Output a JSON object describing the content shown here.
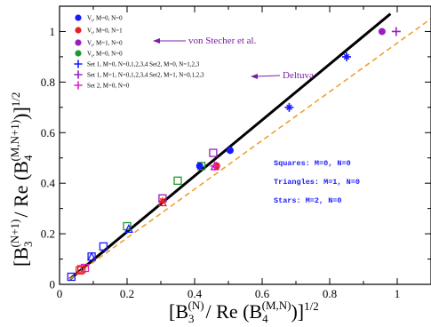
{
  "chart_data": {
    "type": "scatter",
    "xlim": [
      0,
      1.1
    ],
    "ylim": [
      0,
      1.1
    ],
    "x_ticks": [
      "0",
      "0.2",
      "0.4",
      "0.6",
      "0.8",
      "1"
    ],
    "y_ticks": [
      "0",
      "0.2",
      "0.4",
      "0.6",
      "0.8",
      "1"
    ],
    "xlabel": {
      "base": "[B",
      "sub1": "3",
      "sup1": "(N)",
      "mid": "/ Re (B",
      "sub2": "4",
      "sup2": "(M,N)",
      "end": ")]",
      "exp": "1/2"
    },
    "ylabel": {
      "base": "[B",
      "sub1": "3",
      "sup1": "(N+1)",
      "mid": "/ Re (B",
      "sub2": "4",
      "sup2": "(M,N+1)",
      "end": ")]",
      "exp": "1/2"
    },
    "lines": [
      {
        "style": "solid",
        "color": "#000000",
        "points": [
          [
            0.03,
            0.02
          ],
          [
            0.98,
            1.07
          ]
        ]
      },
      {
        "style": "dashed",
        "color": "#f0a030",
        "points": [
          [
            0.03,
            0.02
          ],
          [
            1.12,
            1.07
          ]
        ]
      }
    ],
    "series": [
      {
        "legend_main": "V",
        "legend_sub": "t",
        "legend_tail": ", M=0, N=0",
        "marker": "circle",
        "color": "#1a1aff",
        "points": [
          [
            0.415,
            0.468
          ],
          [
            0.505,
            0.53
          ]
        ]
      },
      {
        "legend_main": "V",
        "legend_sub": "t",
        "legend_tail": ", M=0, N=1",
        "marker": "circle",
        "color": "#e8202a",
        "points": [
          [
            0.465,
            0.468
          ]
        ]
      },
      {
        "legend_main": "V",
        "legend_sub": "t",
        "legend_tail": ", M=1, N=0",
        "marker": "circle",
        "color": "#9a1ec0",
        "points": [
          [
            0.955,
            1.0
          ]
        ]
      },
      {
        "legend_main": "V",
        "legend_sub": "t",
        "legend_tail": ", M=0, N=0",
        "marker": "circle",
        "color": "#1e9a2a",
        "points": []
      },
      {
        "legend_main": "Set 1, M=0, N=0,1,2,3,4   Set2, M=0, N=1,2,3",
        "marker": "plus",
        "color": "#1a1aff",
        "points": [
          [
            0.68,
            0.7
          ],
          [
            0.85,
            0.9
          ]
        ]
      },
      {
        "legend_main": "Set 1, M=1, N=0,1,2,3,4   Set2, M=1, N=0,1,2,3",
        "marker": "plus",
        "color": "#9a1ec0",
        "points": [
          [
            0.997,
            1.0
          ]
        ]
      },
      {
        "legend_main": "Set 2, M=0, N=0",
        "marker": "plus",
        "color": "#e020c0",
        "points": [
          [
            0.46,
            0.468
          ]
        ]
      }
    ],
    "open_markers": [
      {
        "shape": "square",
        "color": "#1a1aff",
        "points": [
          [
            0.035,
            0.03
          ],
          [
            0.095,
            0.11
          ],
          [
            0.13,
            0.15
          ]
        ]
      },
      {
        "shape": "square",
        "color": "#e8202a",
        "points": [
          [
            0.06,
            0.055
          ],
          [
            0.065,
            0.06
          ]
        ]
      },
      {
        "shape": "square",
        "color": "#e020c0",
        "points": [
          [
            0.075,
            0.065
          ]
        ]
      },
      {
        "shape": "square",
        "color": "#1e9a2a",
        "points": [
          [
            0.2,
            0.23
          ],
          [
            0.35,
            0.41
          ],
          [
            0.42,
            0.468
          ]
        ]
      },
      {
        "shape": "square",
        "color": "#9a1ec0",
        "points": [
          [
            0.305,
            0.34
          ],
          [
            0.455,
            0.52
          ]
        ]
      },
      {
        "shape": "triangle",
        "color": "#1a1aff",
        "points": [
          [
            0.095,
            0.11
          ],
          [
            0.205,
            0.22
          ]
        ]
      },
      {
        "shape": "triangle",
        "color": "#e8202a",
        "points": [
          [
            0.305,
            0.325
          ]
        ]
      },
      {
        "shape": "triangle",
        "color": "#9a1ec0",
        "points": [
          [
            0.46,
            0.468
          ]
        ]
      },
      {
        "shape": "star",
        "color": "#1a1aff",
        "points": [
          [
            0.505,
            0.53
          ],
          [
            0.68,
            0.7
          ],
          [
            0.85,
            0.9
          ]
        ]
      },
      {
        "shape": "star",
        "color": "#e8202a",
        "points": [
          [
            0.305,
            0.33
          ]
        ]
      },
      {
        "shape": "star",
        "color": "#9a1ec0",
        "points": [
          [
            0.465,
            0.47
          ]
        ]
      }
    ],
    "annotations": [
      {
        "text": "von Stecher et al.",
        "arrow_to": "legend-3"
      },
      {
        "text": "Deltuva",
        "arrow_to": "legend-6"
      }
    ],
    "notes": [
      "Squares: M=0, N=0",
      "Triangles: M=1, N=0",
      "Stars: M=2, N=0"
    ],
    "grid": false,
    "legend_position": "top-left"
  }
}
